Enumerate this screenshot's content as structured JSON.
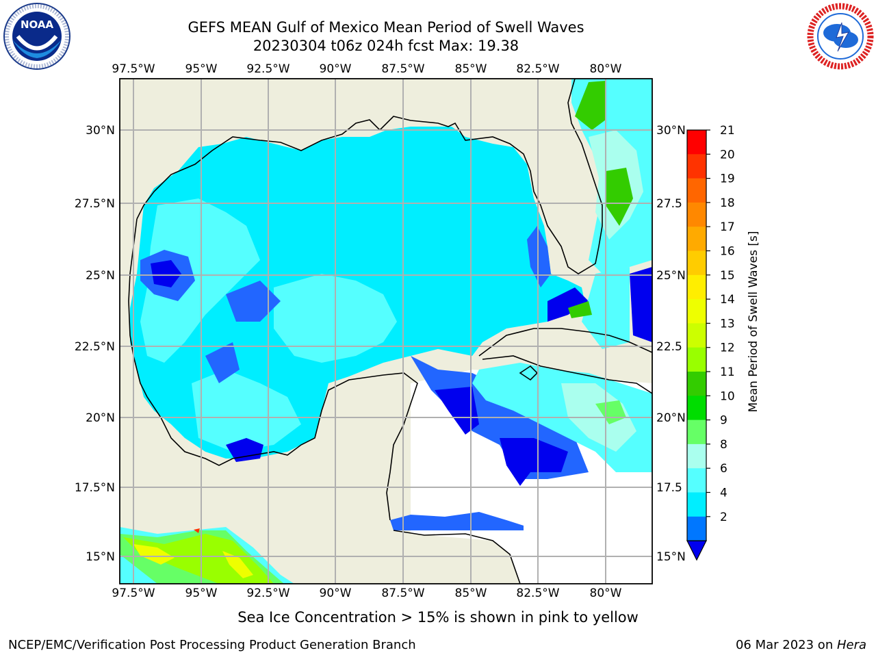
{
  "title_line1": "GEFS MEAN Gulf of Mexico Mean Period of Swell Waves",
  "title_line2": "20230304 t06z 024h fcst   Max: 19.38",
  "lon_labels": [
    "97.5°W",
    "95°W",
    "92.5°W",
    "90°W",
    "87.5°W",
    "85°W",
    "82.5°W",
    "80°W"
  ],
  "lat_labels_left": [
    "30°N",
    "27.5°N",
    "25°N",
    "22.5°N",
    "20°N",
    "17.5°N",
    "15°N"
  ],
  "lat_labels_right": [
    "30°N",
    "27.5",
    "25°N",
    "22.5",
    "20°N",
    "17.5",
    "15°N"
  ],
  "colorbar": {
    "label": "Mean Period of Swell Waves [s]",
    "ticks": [
      "21",
      "20",
      "19",
      "18",
      "17",
      "16",
      "15",
      "14",
      "13",
      "12",
      "11",
      "10",
      "9",
      "8",
      "6",
      "4",
      "2"
    ],
    "colors": [
      "#ff0000",
      "#ff3300",
      "#ff6600",
      "#ff8800",
      "#ffaa00",
      "#ffcc00",
      "#ffee00",
      "#eeff00",
      "#ccff00",
      "#99ff00",
      "#33cc00",
      "#00dd00",
      "#66ff66",
      "#aaffee",
      "#55ffff",
      "#00eeff",
      "#0077ff"
    ]
  },
  "colors": {
    "land": "#eeeedd",
    "swell_light": "#55ffff",
    "swell_mid": "#00eeff",
    "swell_blue": "#2266ff",
    "swell_dark": "#0000ee",
    "swell_green": "#33cc00",
    "grid": "#b0b0b0"
  },
  "logos": {
    "left": "NOAA",
    "right": "NATIONAL WEATHER SERVICE"
  },
  "ice_note": "Sea Ice Concentration > 15% is shown in pink to yellow",
  "footer_left": "NCEP/EMC/Verification Post Processing Product Generation Branch",
  "footer_right_date": "06 Mar 2023 on ",
  "footer_right_host": "Hera"
}
